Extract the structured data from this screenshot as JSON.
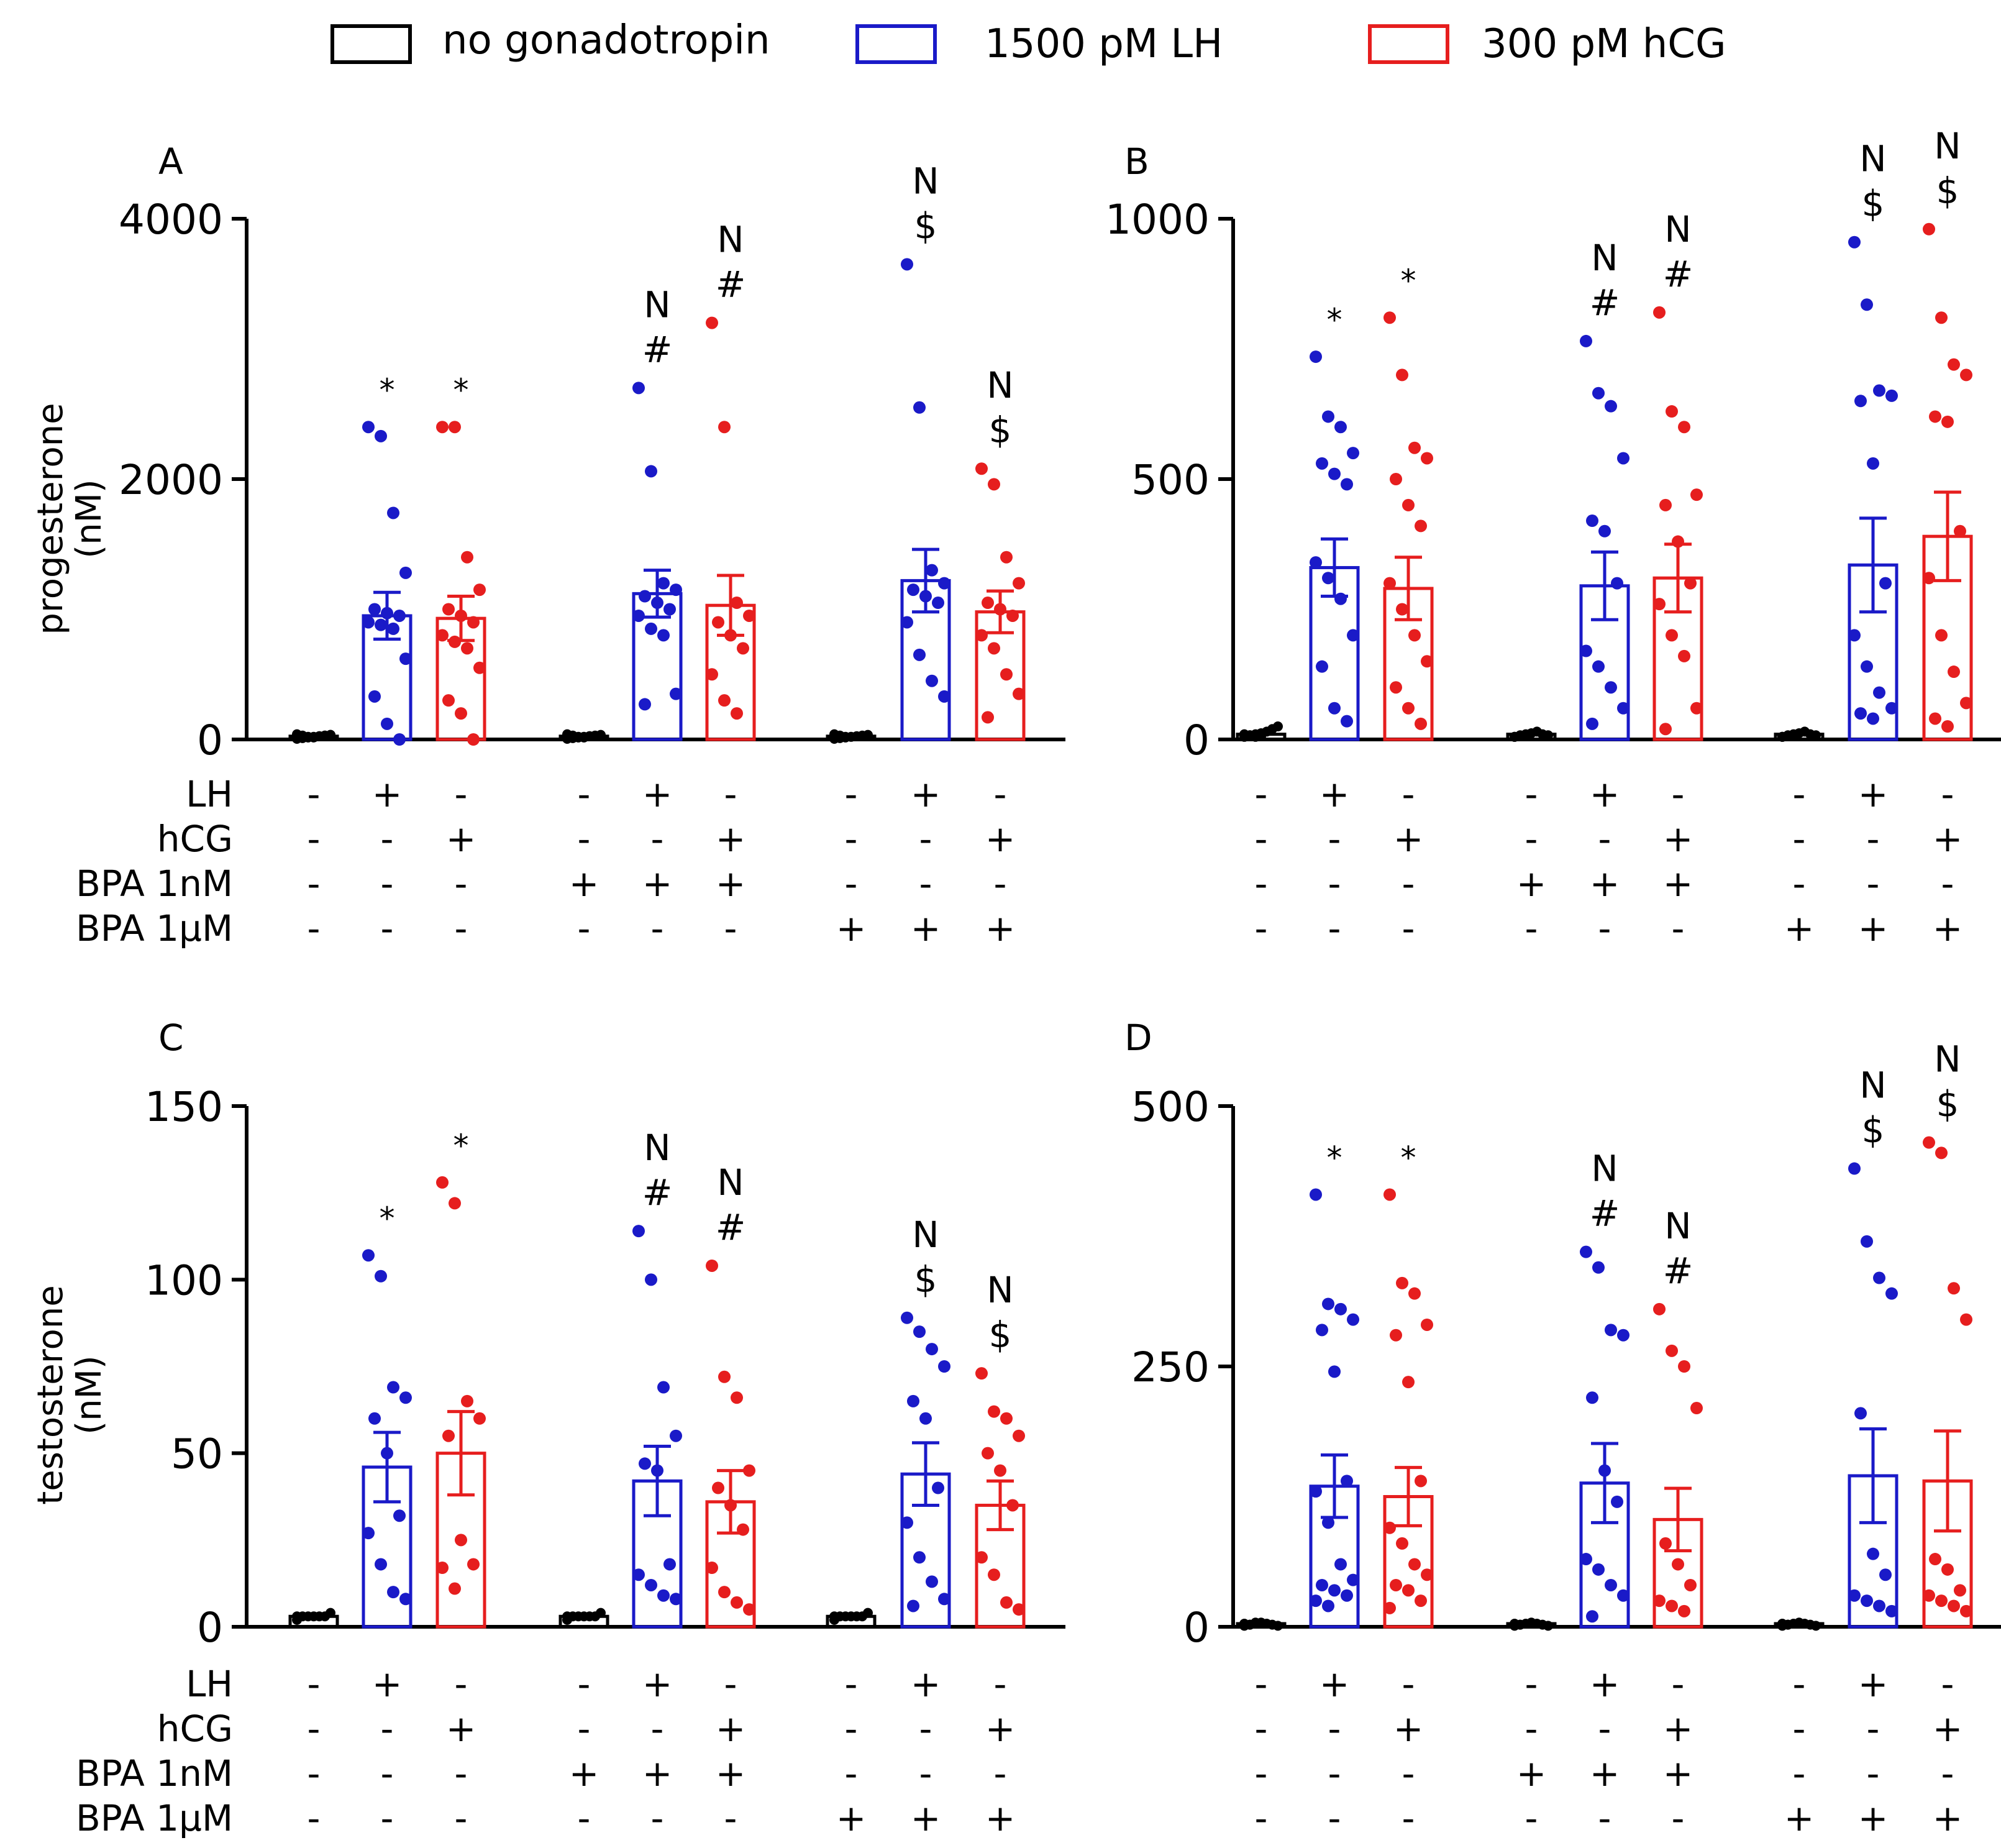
{
  "legend": [
    {
      "label": "no gonadotropin",
      "color": "#000000"
    },
    {
      "label": "1500 pM LH",
      "color": "#1a1ac8"
    },
    {
      "label": "300 pM hCG",
      "color": "#e61e1e"
    }
  ],
  "colors": {
    "none": "#000000",
    "LH": "#1a1ac8",
    "hCG": "#e61e1e"
  },
  "treatment_table": {
    "rows": [
      {
        "label": "LH",
        "signs": [
          "-",
          "+",
          "-",
          "-",
          "+",
          "-",
          "-",
          "+",
          "-"
        ]
      },
      {
        "label": "hCG",
        "signs": [
          "-",
          "-",
          "+",
          "-",
          "-",
          "+",
          "-",
          "-",
          "+"
        ]
      },
      {
        "label": "BPA 1nM",
        "signs": [
          "-",
          "-",
          "-",
          "+",
          "+",
          "+",
          "-",
          "-",
          "-"
        ]
      },
      {
        "label": "BPA 1μM",
        "signs": [
          "-",
          "-",
          "-",
          "-",
          "-",
          "-",
          "+",
          "+",
          "+"
        ]
      }
    ]
  },
  "chart_data": [
    {
      "panel": "A",
      "type": "bar",
      "ylabel": "progesterone (nM)",
      "ylabel_lines": [
        "progesterone",
        "(nM)"
      ],
      "ylim": [
        0,
        4000
      ],
      "yticks": [
        0,
        2000,
        4000
      ],
      "groups": [
        {
          "treatment": "no gonadotropin",
          "mean": 25,
          "sem": 8,
          "points": [
            5,
            10,
            15,
            20,
            25,
            30,
            35,
            40,
            30,
            20,
            15,
            25,
            30,
            35
          ],
          "annotations": []
        },
        {
          "treatment": "LH",
          "mean": 950,
          "sem": 180,
          "points": [
            2400,
            2330,
            1740,
            1280,
            1000,
            970,
            950,
            900,
            880,
            850,
            620,
            330,
            120,
            0
          ],
          "annotations": [
            "*"
          ]
        },
        {
          "treatment": "hCG",
          "mean": 930,
          "sem": 170,
          "points": [
            2400,
            2400,
            1400,
            1150,
            1000,
            950,
            900,
            800,
            750,
            700,
            550,
            300,
            200,
            0
          ],
          "annotations": [
            "*"
          ]
        },
        {
          "treatment": "BPA 1nM",
          "mean": 25,
          "sem": 8,
          "points": [
            5,
            10,
            15,
            20,
            25,
            30,
            35,
            40,
            30,
            20,
            15,
            25
          ],
          "annotations": []
        },
        {
          "treatment": "BPA 1nM + LH",
          "mean": 1120,
          "sem": 180,
          "points": [
            2700,
            2060,
            1200,
            1150,
            1100,
            1050,
            1000,
            950,
            850,
            800,
            350,
            270
          ],
          "annotations": [
            "#",
            "N"
          ]
        },
        {
          "treatment": "BPA 1nM + hCG",
          "mean": 1030,
          "sem": 230,
          "points": [
            3200,
            2400,
            1050,
            950,
            900,
            800,
            700,
            500,
            300,
            200
          ],
          "annotations": [
            "#",
            "N"
          ]
        },
        {
          "treatment": "BPA 1μM",
          "mean": 25,
          "sem": 8,
          "points": [
            5,
            10,
            15,
            20,
            25,
            30,
            35,
            40,
            30,
            20
          ],
          "annotations": []
        },
        {
          "treatment": "BPA 1μM + LH",
          "mean": 1220,
          "sem": 240,
          "points": [
            3650,
            2550,
            1300,
            1200,
            1150,
            1100,
            1050,
            900,
            650,
            450,
            330
          ],
          "annotations": [
            "$",
            "N"
          ]
        },
        {
          "treatment": "BPA 1μM + hCG",
          "mean": 980,
          "sem": 160,
          "points": [
            2080,
            1960,
            1400,
            1200,
            1050,
            1000,
            950,
            800,
            700,
            500,
            350,
            170
          ],
          "annotations": [
            "$",
            "N"
          ]
        }
      ]
    },
    {
      "panel": "B",
      "type": "bar",
      "ylabel": "",
      "ylabel_lines": [],
      "ylim": [
        0,
        1000
      ],
      "yticks": [
        0,
        500,
        1000
      ],
      "groups": [
        {
          "treatment": "no gonadotropin",
          "mean": 10,
          "sem": 3,
          "points": [
            5,
            8,
            10,
            12,
            15,
            20,
            25,
            10,
            8,
            5,
            6
          ],
          "annotations": []
        },
        {
          "treatment": "LH",
          "mean": 330,
          "sem": 55,
          "points": [
            735,
            620,
            600,
            550,
            530,
            510,
            490,
            340,
            310,
            270,
            200,
            140,
            60,
            35
          ],
          "annotations": [
            "*"
          ]
        },
        {
          "treatment": "hCG",
          "mean": 290,
          "sem": 60,
          "points": [
            810,
            700,
            560,
            540,
            500,
            450,
            410,
            300,
            250,
            200,
            150,
            100,
            60,
            30
          ],
          "annotations": [
            "*"
          ]
        },
        {
          "treatment": "BPA 1nM",
          "mean": 10,
          "sem": 3,
          "points": [
            5,
            8,
            10,
            12,
            15,
            10,
            8,
            5,
            6
          ],
          "annotations": []
        },
        {
          "treatment": "BPA 1nM + LH",
          "mean": 295,
          "sem": 65,
          "points": [
            765,
            665,
            640,
            540,
            420,
            400,
            300,
            170,
            140,
            100,
            60,
            30
          ],
          "annotations": [
            "#",
            "N"
          ]
        },
        {
          "treatment": "BPA 1nM + hCG",
          "mean": 310,
          "sem": 65,
          "points": [
            820,
            630,
            600,
            470,
            450,
            380,
            300,
            260,
            200,
            160,
            60,
            20
          ],
          "annotations": [
            "#",
            "N"
          ]
        },
        {
          "treatment": "BPA 1μM",
          "mean": 10,
          "sem": 3,
          "points": [
            5,
            8,
            10,
            12,
            15,
            10,
            8,
            5,
            6
          ],
          "annotations": []
        },
        {
          "treatment": "BPA 1μM + LH",
          "mean": 335,
          "sem": 90,
          "points": [
            955,
            835,
            670,
            660,
            650,
            530,
            300,
            200,
            140,
            90,
            60,
            50,
            40
          ],
          "annotations": [
            "$",
            "N"
          ]
        },
        {
          "treatment": "BPA 1μM + hCG",
          "mean": 390,
          "sem": 85,
          "points": [
            980,
            810,
            720,
            700,
            620,
            610,
            400,
            310,
            200,
            130,
            70,
            40,
            25
          ],
          "annotations": [
            "$",
            "N"
          ]
        }
      ]
    },
    {
      "panel": "C",
      "type": "bar",
      "ylabel": "testosterone (nM)",
      "ylabel_lines": [
        "testosterone",
        "(nM)"
      ],
      "ylim": [
        0,
        150
      ],
      "yticks": [
        0,
        50,
        100,
        150
      ],
      "groups": [
        {
          "treatment": "no gonadotropin",
          "mean": 3,
          "sem": 0.5,
          "points": [
            2,
            3,
            3,
            3,
            3,
            3,
            4,
            3
          ],
          "annotations": []
        },
        {
          "treatment": "LH",
          "mean": 46,
          "sem": 10,
          "points": [
            107,
            101,
            69,
            66,
            60,
            50,
            32,
            27,
            18,
            10,
            8
          ],
          "annotations": [
            "*"
          ]
        },
        {
          "treatment": "hCG",
          "mean": 50,
          "sem": 12,
          "points": [
            128,
            122,
            65,
            60,
            55,
            25,
            18,
            17,
            11
          ],
          "annotations": [
            "*"
          ]
        },
        {
          "treatment": "BPA 1nM",
          "mean": 3,
          "sem": 0.5,
          "points": [
            2,
            3,
            3,
            3,
            3,
            3,
            4,
            3
          ],
          "annotations": []
        },
        {
          "treatment": "BPA 1nM + LH",
          "mean": 42,
          "sem": 10,
          "points": [
            114,
            100,
            69,
            55,
            47,
            45,
            18,
            15,
            12,
            9,
            8
          ],
          "annotations": [
            "#",
            "N"
          ]
        },
        {
          "treatment": "BPA 1nM + hCG",
          "mean": 36,
          "sem": 9,
          "points": [
            104,
            72,
            66,
            45,
            40,
            35,
            28,
            17,
            10,
            7,
            5
          ],
          "annotations": [
            "#",
            "N"
          ]
        },
        {
          "treatment": "BPA 1μM",
          "mean": 3,
          "sem": 0.5,
          "points": [
            2,
            3,
            3,
            3,
            3,
            3,
            4,
            3
          ],
          "annotations": []
        },
        {
          "treatment": "BPA 1μM + LH",
          "mean": 44,
          "sem": 9,
          "points": [
            89,
            85,
            80,
            75,
            65,
            60,
            40,
            30,
            20,
            13,
            8,
            6
          ],
          "annotations": [
            "$",
            "N"
          ]
        },
        {
          "treatment": "BPA 1μM + hCG",
          "mean": 35,
          "sem": 7,
          "points": [
            73,
            62,
            60,
            55,
            50,
            45,
            35,
            20,
            15,
            7,
            5
          ],
          "annotations": [
            "$",
            "N"
          ]
        }
      ]
    },
    {
      "panel": "D",
      "type": "bar",
      "ylabel": "",
      "ylabel_lines": [],
      "ylim": [
        0,
        500
      ],
      "yticks": [
        0,
        250,
        500
      ],
      "groups": [
        {
          "treatment": "no gonadotropin",
          "mean": 3,
          "sem": 1,
          "points": [
            1,
            2,
            3,
            4,
            3,
            2,
            1,
            3,
            2,
            4
          ],
          "annotations": []
        },
        {
          "treatment": "LH",
          "mean": 135,
          "sem": 30,
          "points": [
            415,
            310,
            305,
            295,
            285,
            245,
            140,
            130,
            100,
            60,
            45,
            40,
            35,
            30,
            25,
            20
          ],
          "annotations": [
            "*"
          ]
        },
        {
          "treatment": "hCG",
          "mean": 125,
          "sem": 28,
          "points": [
            415,
            330,
            320,
            290,
            280,
            235,
            140,
            95,
            80,
            60,
            50,
            40,
            35,
            25,
            18
          ],
          "annotations": [
            "*"
          ]
        },
        {
          "treatment": "BPA 1nM",
          "mean": 3,
          "sem": 1,
          "points": [
            1,
            2,
            3,
            4,
            3,
            2,
            1,
            3,
            2
          ],
          "annotations": []
        },
        {
          "treatment": "BPA 1nM + LH",
          "mean": 138,
          "sem": 38,
          "points": [
            360,
            345,
            285,
            280,
            220,
            150,
            120,
            65,
            55,
            40,
            30,
            10
          ],
          "annotations": [
            "#",
            "N"
          ]
        },
        {
          "treatment": "BPA 1nM + hCG",
          "mean": 103,
          "sem": 30,
          "points": [
            305,
            265,
            250,
            210,
            80,
            60,
            40,
            25,
            20,
            15
          ],
          "annotations": [
            "#",
            "N"
          ]
        },
        {
          "treatment": "BPA 1μM",
          "mean": 3,
          "sem": 1,
          "points": [
            1,
            2,
            3,
            4,
            3,
            2,
            1,
            3,
            2
          ],
          "annotations": []
        },
        {
          "treatment": "BPA 1μM + LH",
          "mean": 145,
          "sem": 45,
          "points": [
            440,
            370,
            335,
            320,
            205,
            70,
            50,
            30,
            25,
            20,
            15
          ],
          "annotations": [
            "$",
            "N"
          ]
        },
        {
          "treatment": "BPA 1μM + hCG",
          "mean": 140,
          "sem": 48,
          "points": [
            465,
            455,
            325,
            295,
            65,
            55,
            35,
            30,
            25,
            20,
            15
          ],
          "annotations": [
            "$",
            "N"
          ]
        }
      ]
    }
  ]
}
